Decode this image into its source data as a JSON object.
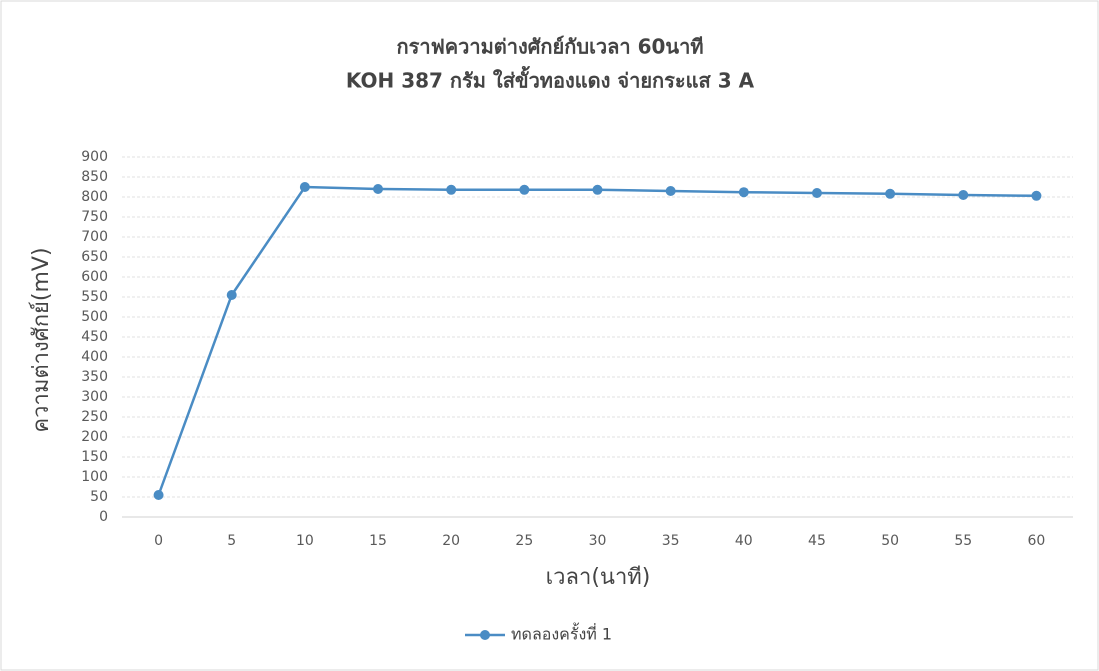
{
  "chart_data": {
    "type": "line",
    "title": "กราฟความต่างศักย์กับเวลา 60นาที",
    "subtitle": "KOH 387 กรัม ใส่ขั้วทองแดง   จ่ายกระแส 3 A",
    "x_label": "เวลา(นาที)",
    "y_label": "ความต่างศักย์(mV)",
    "categories": [
      "0",
      "5",
      "10",
      "15",
      "20",
      "25",
      "30",
      "35",
      "40",
      "45",
      "50",
      "55",
      "60"
    ],
    "series": [
      {
        "name": "ทดลองครั้งที่ 1",
        "color": "#4a8cc4",
        "values": [
          55,
          555,
          825,
          820,
          818,
          818,
          818,
          815,
          812,
          810,
          808,
          805,
          803
        ]
      }
    ],
    "ylim": [
      0,
      900
    ],
    "yticks": [
      0,
      50,
      100,
      150,
      200,
      250,
      300,
      350,
      400,
      450,
      500,
      550,
      600,
      650,
      700,
      750,
      800,
      850,
      900
    ],
    "grid": true,
    "legend": "bottom"
  }
}
